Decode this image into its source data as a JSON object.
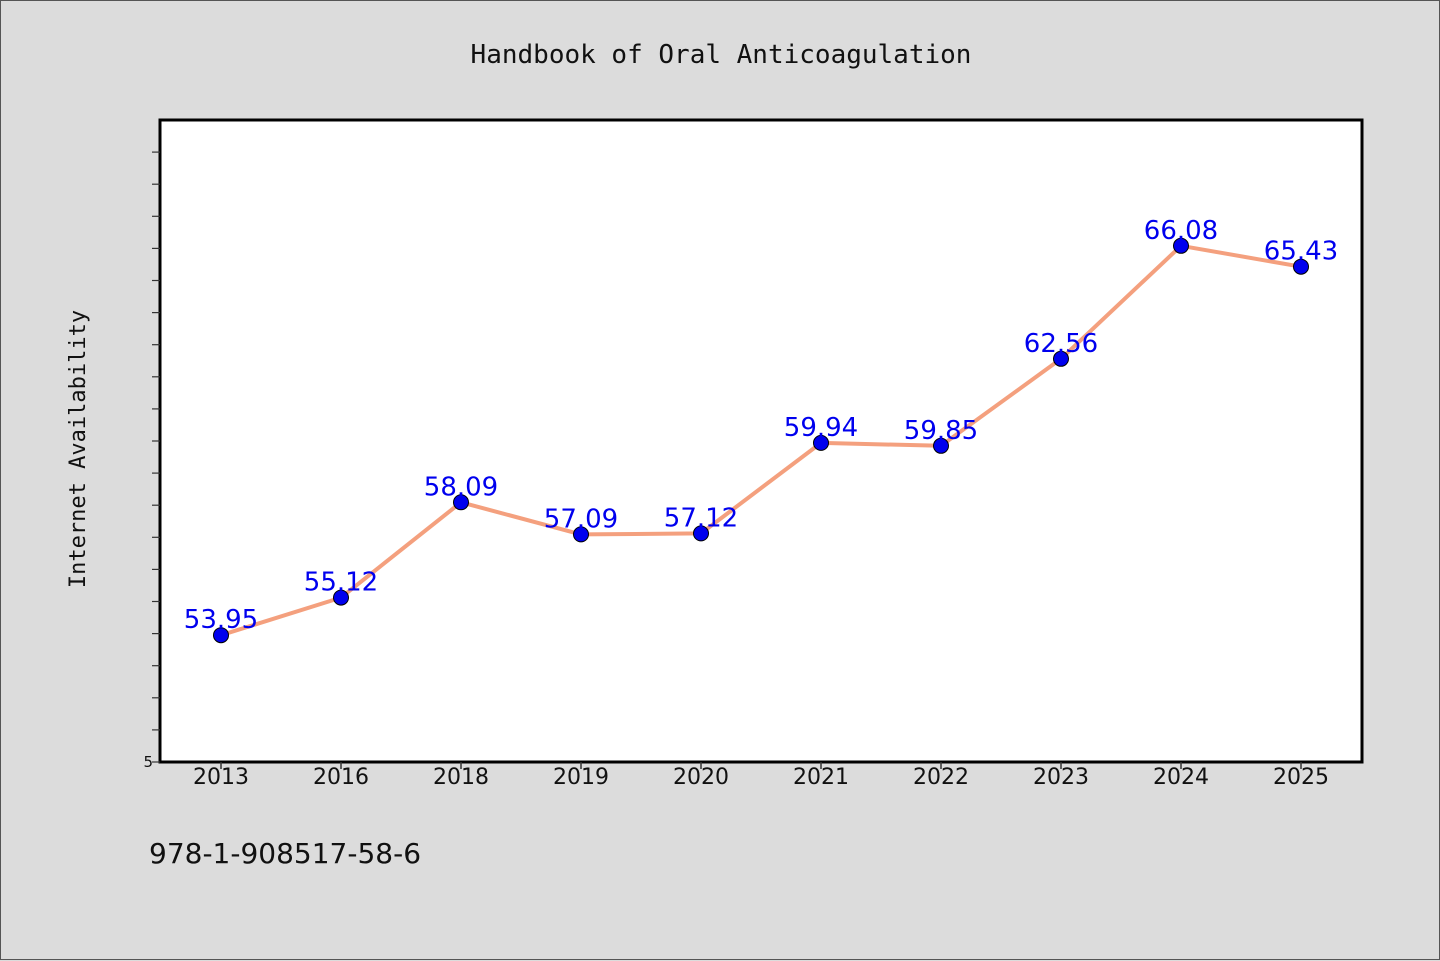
{
  "chart_data": {
    "type": "line",
    "title": "Handbook of Oral Anticoagulation",
    "xlabel": "",
    "ylabel": "Internet Availability",
    "categories": [
      "2013",
      "2016",
      "2018",
      "2019",
      "2020",
      "2021",
      "2022",
      "2023",
      "2024",
      "2025"
    ],
    "series": [
      {
        "values": [
          53.95,
          55.12,
          58.09,
          57.09,
          57.12,
          59.94,
          59.85,
          62.56,
          66.08,
          65.43
        ],
        "labels": [
          "53.95",
          "55.12",
          "58.09",
          "57.09",
          "57.12",
          "59.94",
          "59.85",
          "62.56",
          "66.08",
          "65.43"
        ]
      }
    ],
    "ylim": [
      50,
      70
    ],
    "ytick_label": "5",
    "grid": false,
    "legend": "none",
    "annotation": "978-1-908517-58-6"
  },
  "colors": {
    "line": "#f4a07e",
    "marker": "#0000ee",
    "label": "#0000ee",
    "plot_bg": "#ffffff",
    "page_bg": "#dcdcdc"
  }
}
